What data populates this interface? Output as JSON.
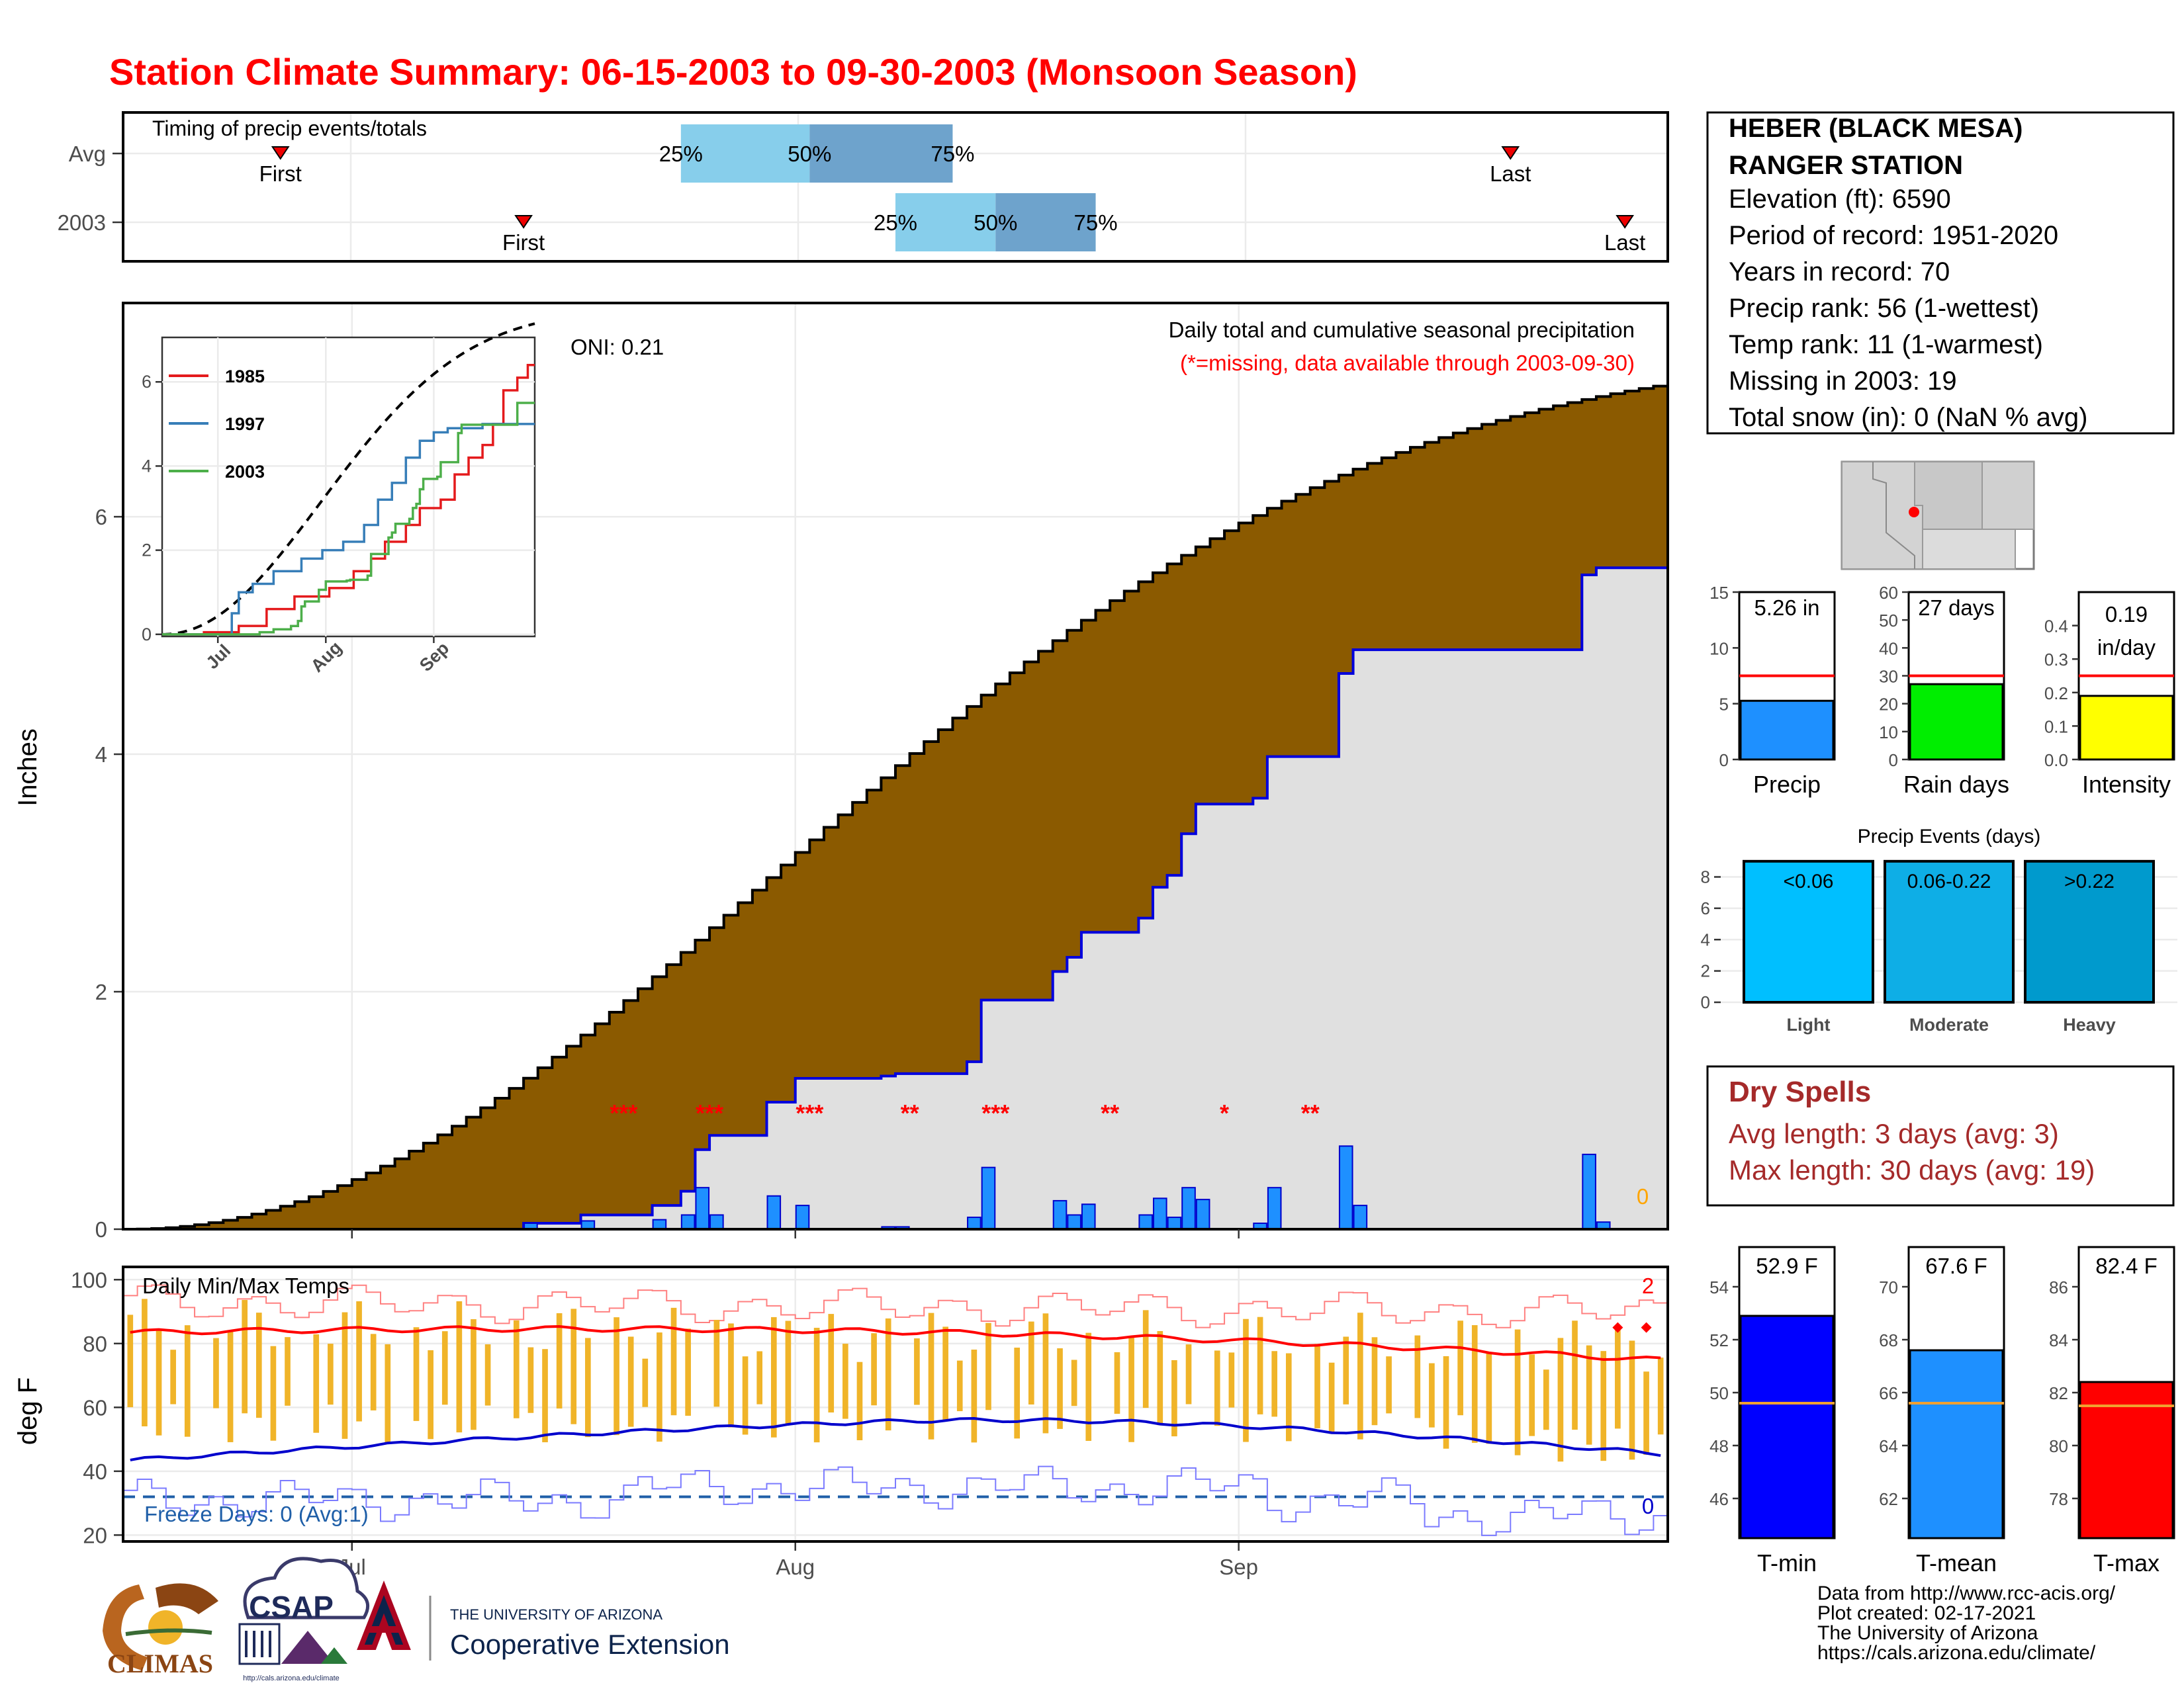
{
  "title": "Station Climate Summary: 06-15-2003 to 09-30-2003 (Monsoon Season)",
  "timing": {
    "label": "Timing of precip events/totals",
    "rows": [
      "Avg",
      "2003"
    ],
    "avg": {
      "first": "2003-06-26",
      "p25": "2003-07-24",
      "p50": "2003-08-02",
      "p75": "2003-08-12",
      "last": "2003-09-20"
    },
    "y2003": {
      "first": "2003-07-13",
      "p25": "2003-08-08",
      "p50": "2003-08-15",
      "p75": "2003-08-22",
      "last": "2003-09-28"
    },
    "first_label": "First",
    "last_label": "Last",
    "pct_labels": [
      "25%",
      "50%",
      "75%"
    ],
    "colors": {
      "light": "#87ceeb",
      "dark": "#6ea3cc",
      "marker": "#ee0000"
    }
  },
  "main": {
    "ylabel": "Inches",
    "y_ticks": [
      0,
      2,
      4,
      6
    ],
    "ylim": [
      0,
      7.8
    ],
    "x_ticks": [
      "Jul",
      "Aug",
      "Sep"
    ],
    "date_range": [
      "2003-06-15",
      "2003-09-30"
    ],
    "oni": "ONI: 0.21",
    "subtitle": "Daily total and cumulative seasonal precipitation",
    "missing_note": "(*=missing, data available through 2003-09-30)",
    "missing_marks": [
      {
        "date": "2003-07-20",
        "text": "***"
      },
      {
        "date": "2003-07-26",
        "text": "***"
      },
      {
        "date": "2003-08-02",
        "text": "***"
      },
      {
        "date": "2003-08-09",
        "text": "**"
      },
      {
        "date": "2003-08-15",
        "text": "***"
      },
      {
        "date": "2003-08-23",
        "text": "**"
      },
      {
        "date": "2003-08-31",
        "text": "*"
      },
      {
        "date": "2003-09-06",
        "text": "**"
      }
    ],
    "corner_value": "0",
    "colors": {
      "avg_fill": "#8b5a00",
      "obs_fill": "#e0e0e0",
      "obs_line": "#0000dd",
      "bar": "#1e90ff",
      "missing": "#ff0000",
      "corner": "#ffa500"
    }
  },
  "inset": {
    "y_ticks": [
      0,
      2,
      4,
      6
    ],
    "x_ticks": [
      "Jul",
      "Aug",
      "Sep"
    ],
    "legend": [
      {
        "name": "1985",
        "color": "#e41a1c"
      },
      {
        "name": "1997",
        "color": "#377eb8"
      },
      {
        "name": "2003",
        "color": "#4daf4a"
      }
    ]
  },
  "temps": {
    "ylabel": "deg F",
    "y_ticks": [
      20,
      40,
      60,
      80,
      100
    ],
    "ylim": [
      18,
      104
    ],
    "label": "Daily Min/Max Temps",
    "freeze_label": "Freeze Days: 0 (Avg:1)",
    "count_hot": "2",
    "count_cold": "0",
    "freeze_line": 32,
    "colors": {
      "bar": "#f0b429",
      "avg_max": "#ff0000",
      "avg_min": "#0000cc",
      "rec": "#ff8080",
      "rec_min": "#7b7bff",
      "freeze": "#1f5fa8"
    }
  },
  "station": {
    "name_line1": "HEBER (BLACK MESA)",
    "name_line2": "RANGER STATION",
    "lines": [
      "Elevation (ft): 6590",
      "Period of record: 1951-2020",
      "Years in record: 70",
      "Precip rank: 56 (1-wettest)",
      "Temp rank: 11 (1-warmest)",
      "Missing in 2003: 19",
      "Total snow (in): 0 (NaN % avg)"
    ]
  },
  "mini_bars": [
    {
      "name": "Precip",
      "value_label": "5.26 in",
      "value": 5.26,
      "avg": 7.5,
      "ymax": 15,
      "ticks": [
        0,
        5,
        10,
        15
      ],
      "color": "#1e90ff"
    },
    {
      "name": "Rain days",
      "value_label": "27 days",
      "value": 27,
      "avg": 30,
      "ymax": 60,
      "ticks": [
        0,
        10,
        20,
        30,
        40,
        50,
        60
      ],
      "color": "#00ee00"
    },
    {
      "name": "Intensity",
      "value_label": "0.19 in/day",
      "value_label_line1": "0.19",
      "value_label_line2": "in/day",
      "value": 0.19,
      "avg": 0.25,
      "ymax": 0.5,
      "ticks": [
        "0.0",
        "0.1",
        "0.2",
        "0.3",
        "0.4"
      ],
      "color": "#ffff00"
    }
  ],
  "events": {
    "title": "Precip Events (days)",
    "ticks": [
      0,
      2,
      4,
      6,
      8
    ],
    "categories": [
      {
        "name": "Light",
        "range": "<0.06",
        "value": 9,
        "color": "#00bfff"
      },
      {
        "name": "Moderate",
        "range": "0.06-0.22",
        "value": 9,
        "color": "#0eaee6"
      },
      {
        "name": "Heavy",
        "range": ">0.22",
        "value": 9,
        "color": "#009acd"
      }
    ]
  },
  "dry_spells": {
    "title": "Dry Spells",
    "avg_line": "Avg length: 3 days (avg: 3)",
    "max_line": "Max length: 30 days (avg: 19)",
    "color": "#a52a2a"
  },
  "temp_bars": [
    {
      "name": "T-min",
      "value_label": "52.9 F",
      "value": 52.9,
      "avg": 49.6,
      "ylim": [
        44.5,
        55.5
      ],
      "ticks": [
        46,
        48,
        50,
        52,
        54
      ],
      "color": "#0000ff"
    },
    {
      "name": "T-mean",
      "value_label": "67.6 F",
      "value": 67.6,
      "avg": 65.6,
      "ylim": [
        60.5,
        71.5
      ],
      "ticks": [
        62,
        64,
        66,
        68,
        70
      ],
      "color": "#1e90ff"
    },
    {
      "name": "T-max",
      "value_label": "82.4 F",
      "value": 82.4,
      "avg": 81.5,
      "ylim": [
        76.5,
        87.5
      ],
      "ticks": [
        78,
        80,
        82,
        84,
        86
      ],
      "color": "#ff0000"
    }
  ],
  "footer": {
    "credits": [
      "Data from http://www.rcc-acis.org/",
      "Plot created: 02-17-2021",
      "The University of Arizona",
      "https://cals.arizona.edu/climate/"
    ],
    "logo_climas": "CLIMAS",
    "logo_csap": "CSAP",
    "logo_csap_url": "http://cals.arizona.edu/climate",
    "ua_small": "THE UNIVERSITY OF ARIZONA",
    "ua_big": "Cooperative Extension"
  }
}
